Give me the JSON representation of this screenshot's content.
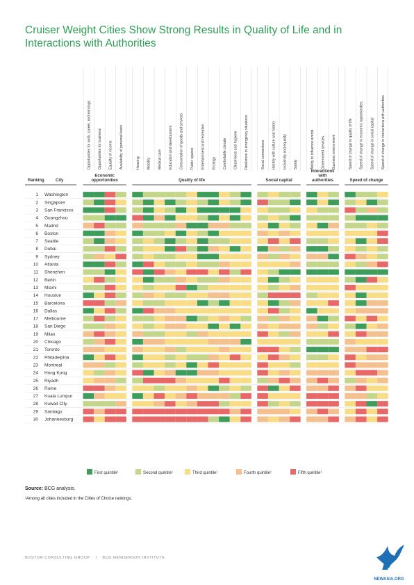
{
  "title": "Cruiser Weight Cities Show Strong Results in Quality of Life and in Interactions with Authorities",
  "source_label": "Source:",
  "source_text": "BCG analysis.",
  "footnote": "¹Among all cities included in the Cities of Choice rankings.",
  "footer": {
    "left": "BOSTON CONSULTING GROUP",
    "separator": "|",
    "right": "BCG HENDERSON INSTITUTE"
  },
  "logo_text": "NEWASIA.ORG",
  "chart_data": {
    "type": "heatmap",
    "row_header_rank": "Ranking",
    "row_header_city": "City",
    "groups": [
      {
        "name": "Economic opportunities",
        "columns": [
          "Opportunities for work, career, and earnings",
          "Opportunities for business",
          "Equality of income",
          "Availability of personal loans"
        ]
      },
      {
        "name": "Quality of life",
        "columns": [
          "Housing",
          "Mobility",
          "Medical care",
          "Education and development",
          "Consumption of goods and services",
          "Public spaces",
          "Entertainment and recreation",
          "Ecology",
          "Comfortable climate",
          "Cleanliness and hygiene",
          "Resilience to emergency situations"
        ]
      },
      {
        "name": "Social capital",
        "columns": [
          "Social connections",
          "Identity with culture and history",
          "Inclusivity and equality",
          "Safety"
        ]
      },
      {
        "name": "Interactions with authorities",
        "columns": [
          "Ability to influence events",
          "Government services",
          "Business environment"
        ]
      },
      {
        "name": "Speed of change",
        "columns": [
          "Speed of change in quality of life",
          "Speed of change in economic opportunities",
          "Speed of change in social capital",
          "Speed of change in interactions with authorities"
        ]
      }
    ],
    "legend": [
      {
        "value": 1,
        "label": "First quintile¹",
        "color": "#3f9d5c"
      },
      {
        "value": 2,
        "label": "Second quintile¹",
        "color": "#c3d68a"
      },
      {
        "value": 3,
        "label": "Third quintile¹",
        "color": "#f8dc86"
      },
      {
        "value": 4,
        "label": "Fourth quintile¹",
        "color": "#f4c08e"
      },
      {
        "value": 5,
        "label": "Fifth quintile¹",
        "color": "#e86868"
      }
    ],
    "cities": [
      {
        "rank": "1",
        "city": "Washington",
        "values": [
          1,
          1,
          5,
          2,
          1,
          2,
          2,
          2,
          2,
          3,
          1,
          1,
          3,
          2,
          1,
          2,
          3,
          2,
          2,
          1,
          3,
          2,
          1,
          2,
          2,
          3
        ]
      },
      {
        "rank": "2",
        "city": "Singapore",
        "values": [
          2,
          1,
          5,
          3,
          2,
          1,
          3,
          1,
          2,
          3,
          2,
          1,
          3,
          2,
          1,
          5,
          2,
          2,
          1,
          1,
          3,
          1,
          2,
          3,
          1,
          2
        ]
      },
      {
        "rank": "3",
        "city": "San Francisco",
        "values": [
          1,
          1,
          5,
          2,
          2,
          1,
          3,
          2,
          1,
          3,
          1,
          1,
          1,
          1,
          3,
          3,
          2,
          2,
          3,
          3,
          2,
          2,
          5,
          2,
          4,
          2
        ]
      },
      {
        "rank": "4",
        "city": "Guangzhou",
        "values": [
          2,
          2,
          1,
          1,
          5,
          1,
          4,
          1,
          3,
          3,
          2,
          1,
          3,
          1,
          3,
          2,
          3,
          2,
          1,
          2,
          2,
          2,
          2,
          1,
          1,
          1
        ]
      },
      {
        "rank": "5",
        "city": "Madrid",
        "values": [
          4,
          5,
          2,
          2,
          4,
          2,
          2,
          2,
          4,
          1,
          1,
          4,
          4,
          2,
          2,
          3,
          1,
          3,
          2,
          3,
          1,
          4,
          2,
          2,
          3,
          2
        ]
      },
      {
        "rank": "6",
        "city": "Boston",
        "values": [
          1,
          1,
          4,
          3,
          1,
          2,
          2,
          3,
          1,
          3,
          2,
          1,
          3,
          3,
          3,
          4,
          3,
          4,
          3,
          3,
          3,
          3,
          3,
          3,
          3,
          5
        ]
      },
      {
        "rank": "7",
        "city": "Seattle",
        "values": [
          2,
          1,
          4,
          3,
          2,
          3,
          2,
          1,
          2,
          3,
          1,
          2,
          2,
          3,
          3,
          3,
          5,
          3,
          5,
          2,
          2,
          3,
          3,
          1,
          3,
          5
        ]
      },
      {
        "rank": "8",
        "city": "Dubai",
        "values": [
          2,
          2,
          5,
          2,
          2,
          3,
          3,
          1,
          5,
          2,
          1,
          4,
          3,
          1,
          3,
          1,
          4,
          2,
          4,
          1,
          1,
          2,
          3,
          2,
          3,
          2
        ]
      },
      {
        "rank": "9",
        "city": "Sydney",
        "values": [
          2,
          4,
          3,
          5,
          2,
          3,
          2,
          2,
          3,
          3,
          1,
          1,
          3,
          3,
          3,
          4,
          2,
          4,
          3,
          4,
          4,
          1,
          5,
          4,
          3,
          2
        ]
      },
      {
        "rank": "10",
        "city": "Atlanta",
        "values": [
          1,
          1,
          5,
          2,
          1,
          5,
          3,
          2,
          2,
          3,
          2,
          2,
          4,
          3,
          3,
          3,
          3,
          3,
          4,
          2,
          2,
          2,
          3,
          2,
          4,
          5
        ]
      },
      {
        "rank": "11",
        "city": "Shenzhen",
        "values": [
          2,
          2,
          1,
          3,
          5,
          1,
          5,
          4,
          3,
          5,
          5,
          3,
          5,
          2,
          5,
          3,
          2,
          1,
          1,
          1,
          1,
          1,
          1,
          1,
          1,
          1
        ]
      },
      {
        "rank": "12",
        "city": "Berlin",
        "values": [
          3,
          5,
          2,
          3,
          3,
          1,
          2,
          2,
          4,
          3,
          2,
          2,
          4,
          3,
          3,
          3,
          1,
          2,
          3,
          3,
          3,
          3,
          2,
          1,
          5,
          3
        ]
      },
      {
        "rank": "13",
        "city": "Miami",
        "values": [
          2,
          2,
          5,
          3,
          3,
          2,
          3,
          3,
          5,
          1,
          2,
          3,
          3,
          3,
          3,
          3,
          2,
          3,
          4,
          3,
          3,
          3,
          5,
          3,
          3,
          3
        ]
      },
      {
        "rank": "14",
        "city": "Houston",
        "values": [
          1,
          3,
          5,
          2,
          2,
          4,
          3,
          2,
          2,
          3,
          3,
          4,
          4,
          3,
          3,
          2,
          5,
          5,
          5,
          2,
          3,
          3,
          3,
          1,
          3,
          3
        ]
      },
      {
        "rank": "15",
        "city": "Barcelona",
        "values": [
          5,
          5,
          2,
          4,
          3,
          2,
          2,
          3,
          3,
          3,
          1,
          2,
          1,
          3,
          3,
          3,
          1,
          2,
          4,
          3,
          3,
          5,
          3,
          1,
          4,
          4
        ]
      },
      {
        "rank": "16",
        "city": "Dallas",
        "values": [
          1,
          3,
          5,
          2,
          1,
          5,
          4,
          4,
          3,
          3,
          3,
          3,
          3,
          3,
          3,
          3,
          5,
          2,
          3,
          1,
          3,
          3,
          3,
          4,
          4,
          4
        ]
      },
      {
        "rank": "17",
        "city": "Melbourne",
        "values": [
          2,
          5,
          2,
          3,
          2,
          2,
          3,
          4,
          4,
          1,
          2,
          3,
          4,
          3,
          2,
          4,
          2,
          4,
          3,
          4,
          1,
          2,
          5,
          3,
          5,
          3
        ]
      },
      {
        "rank": "18",
        "city": "San Diego",
        "values": [
          2,
          2,
          4,
          3,
          3,
          2,
          3,
          4,
          4,
          3,
          3,
          1,
          3,
          1,
          3,
          4,
          3,
          4,
          4,
          4,
          2,
          3,
          2,
          1,
          3,
          4
        ]
      },
      {
        "rank": "19",
        "city": "Milan",
        "values": [
          4,
          5,
          4,
          3,
          4,
          2,
          2,
          3,
          3,
          2,
          4,
          3,
          3,
          3,
          3,
          5,
          3,
          2,
          4,
          3,
          3,
          5,
          3,
          5,
          4,
          4
        ]
      },
      {
        "rank": "20",
        "city": "Chicago",
        "values": [
          2,
          4,
          5,
          3,
          1,
          4,
          4,
          3,
          3,
          3,
          3,
          4,
          4,
          4,
          1,
          3,
          3,
          3,
          3,
          2,
          2,
          2,
          4,
          3,
          3,
          3
        ]
      },
      {
        "rank": "21",
        "city": "Toronto",
        "values": [
          4,
          4,
          3,
          3,
          4,
          3,
          3,
          4,
          2,
          3,
          3,
          3,
          4,
          3,
          3,
          5,
          5,
          3,
          2,
          1,
          1,
          1,
          4,
          4,
          5,
          5
        ]
      },
      {
        "rank": "22",
        "city": "Philadelphia",
        "values": [
          1,
          3,
          5,
          3,
          1,
          3,
          3,
          2,
          3,
          2,
          2,
          4,
          3,
          5,
          3,
          3,
          5,
          4,
          3,
          2,
          2,
          3,
          5,
          3,
          4,
          4
        ]
      },
      {
        "rank": "23",
        "city": "Montreal",
        "values": [
          4,
          4,
          2,
          3,
          2,
          3,
          3,
          2,
          3,
          1,
          3,
          5,
          3,
          3,
          3,
          5,
          3,
          3,
          2,
          3,
          3,
          3,
          5,
          4,
          4,
          4
        ]
      },
      {
        "rank": "24",
        "city": "Hong Kong",
        "values": [
          3,
          2,
          4,
          3,
          5,
          1,
          3,
          4,
          1,
          1,
          4,
          4,
          3,
          3,
          3,
          5,
          3,
          4,
          3,
          4,
          4,
          4,
          3,
          5,
          5,
          4
        ]
      },
      {
        "rank": "25",
        "city": "Riyadh",
        "values": [
          3,
          4,
          4,
          2,
          2,
          5,
          5,
          5,
          4,
          3,
          3,
          3,
          5,
          3,
          3,
          2,
          4,
          5,
          4,
          4,
          5,
          4,
          2,
          4,
          3,
          4
        ]
      },
      {
        "rank": "26",
        "city": "Rome",
        "values": [
          5,
          5,
          4,
          3,
          3,
          3,
          2,
          3,
          3,
          4,
          3,
          1,
          2,
          3,
          2,
          5,
          1,
          3,
          5,
          4,
          4,
          5,
          4,
          5,
          3,
          3
        ]
      },
      {
        "rank": "27",
        "city": "Kuala Lumpur",
        "values": [
          1,
          4,
          3,
          3,
          1,
          3,
          5,
          3,
          4,
          5,
          4,
          4,
          4,
          2,
          5,
          5,
          3,
          3,
          3,
          5,
          5,
          5,
          4,
          4,
          2,
          3
        ]
      },
      {
        "rank": "28",
        "city": "Kuwait City",
        "values": [
          2,
          2,
          2,
          4,
          3,
          3,
          4,
          5,
          3,
          4,
          5,
          5,
          2,
          3,
          3,
          5,
          2,
          3,
          2,
          5,
          5,
          5,
          3,
          5,
          1,
          5
        ]
      },
      {
        "rank": "29",
        "city": "Santiago",
        "values": [
          5,
          4,
          5,
          5,
          5,
          5,
          5,
          5,
          5,
          5,
          5,
          5,
          5,
          4,
          5,
          4,
          4,
          4,
          3,
          4,
          5,
          4,
          3,
          5,
          3,
          5
        ]
      },
      {
        "rank": "30",
        "city": "Johannesburg",
        "values": [
          5,
          3,
          5,
          5,
          5,
          5,
          5,
          5,
          5,
          5,
          5,
          2,
          1,
          3,
          5,
          4,
          3,
          4,
          5,
          4,
          4,
          5,
          4,
          5,
          3,
          5
        ]
      }
    ]
  }
}
